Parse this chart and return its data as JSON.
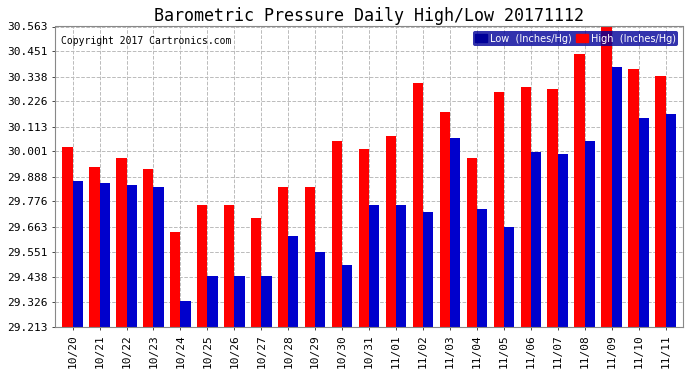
{
  "title": "Barometric Pressure Daily High/Low 20171112",
  "copyright": "Copyright 2017 Cartronics.com",
  "legend_low": "Low  (Inches/Hg)",
  "legend_high": "High  (Inches/Hg)",
  "dates": [
    "10/20",
    "10/21",
    "10/22",
    "10/23",
    "10/24",
    "10/25",
    "10/26",
    "10/27",
    "10/28",
    "10/29",
    "10/30",
    "10/31",
    "11/01",
    "11/02",
    "11/03",
    "11/04",
    "11/05",
    "11/06",
    "11/07",
    "11/08",
    "11/09",
    "11/10",
    "11/11"
  ],
  "high_values": [
    30.02,
    29.93,
    29.97,
    29.92,
    29.64,
    29.76,
    29.76,
    29.7,
    29.84,
    29.84,
    30.05,
    30.01,
    30.07,
    30.31,
    30.18,
    29.97,
    30.27,
    30.29,
    30.28,
    30.44,
    30.56,
    30.37,
    30.34
  ],
  "low_values": [
    29.87,
    29.86,
    29.85,
    29.84,
    29.33,
    29.44,
    29.44,
    29.44,
    29.62,
    29.55,
    29.49,
    29.76,
    29.76,
    29.73,
    30.06,
    29.74,
    29.66,
    30.0,
    29.99,
    30.05,
    30.38,
    30.15,
    30.17
  ],
  "ylim_min": 29.213,
  "ylim_max": 30.563,
  "yticks": [
    29.213,
    29.326,
    29.438,
    29.551,
    29.663,
    29.776,
    29.888,
    30.001,
    30.113,
    30.226,
    30.338,
    30.451,
    30.563
  ],
  "ytick_labels": [
    "29.213",
    "29.326",
    "29.438",
    "29.551",
    "29.663",
    "29.776",
    "29.888",
    "30.001",
    "30.113",
    "30.226",
    "30.338",
    "30.451",
    "30.563"
  ],
  "bg_color": "#ffffff",
  "plot_bg_color": "#ffffff",
  "bar_width": 0.38,
  "high_color": "#ff0000",
  "low_color": "#0000cc",
  "grid_color": "#bbbbbb",
  "title_fontsize": 12,
  "tick_fontsize": 8,
  "copyright_fontsize": 7
}
